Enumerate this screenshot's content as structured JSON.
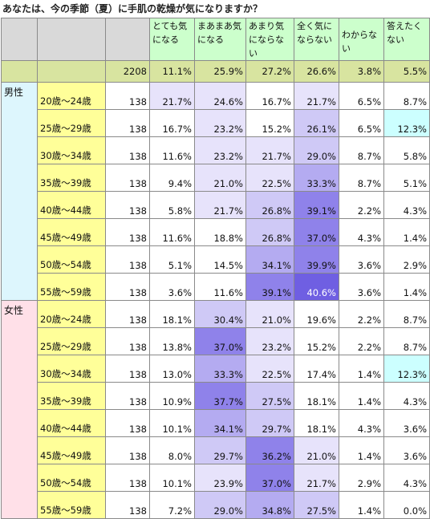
{
  "title": "あなたは、今の季節（夏）に手肌の乾燥が気になりますか？",
  "columns": [
    "とても気になる",
    "まあまあ気になる",
    "あまり気にならない",
    "全く気にならない",
    "わからない",
    "答えたくない"
  ],
  "total": {
    "count": "2208",
    "values": [
      "11.1%",
      "25.9%",
      "27.2%",
      "26.6%",
      "3.8%",
      "5.5%"
    ]
  },
  "groups": [
    {
      "label": "男性",
      "rows": [
        {
          "age": "20歳～24歳",
          "count": "138",
          "values": [
            "21.7%",
            "24.6%",
            "16.7%",
            "21.7%",
            "6.5%",
            "8.7%"
          ]
        },
        {
          "age": "25歳～29歳",
          "count": "138",
          "values": [
            "16.7%",
            "23.2%",
            "15.2%",
            "26.1%",
            "6.5%",
            "12.3%"
          ]
        },
        {
          "age": "30歳～34歳",
          "count": "138",
          "values": [
            "11.6%",
            "23.2%",
            "21.7%",
            "29.0%",
            "8.7%",
            "5.8%"
          ]
        },
        {
          "age": "35歳～39歳",
          "count": "138",
          "values": [
            "9.4%",
            "21.0%",
            "22.5%",
            "33.3%",
            "8.7%",
            "5.1%"
          ]
        },
        {
          "age": "40歳～44歳",
          "count": "138",
          "values": [
            "5.8%",
            "21.7%",
            "26.8%",
            "39.1%",
            "2.2%",
            "4.3%"
          ]
        },
        {
          "age": "45歳～49歳",
          "count": "138",
          "values": [
            "11.6%",
            "18.8%",
            "26.8%",
            "37.0%",
            "4.3%",
            "1.4%"
          ]
        },
        {
          "age": "50歳～54歳",
          "count": "138",
          "values": [
            "5.1%",
            "14.5%",
            "34.1%",
            "39.9%",
            "3.6%",
            "2.9%"
          ]
        },
        {
          "age": "55歳～59歳",
          "count": "138",
          "values": [
            "3.6%",
            "11.6%",
            "39.1%",
            "40.6%",
            "3.6%",
            "1.4%"
          ]
        }
      ]
    },
    {
      "label": "女性",
      "rows": [
        {
          "age": "20歳～24歳",
          "count": "138",
          "values": [
            "18.1%",
            "30.4%",
            "21.0%",
            "19.6%",
            "2.2%",
            "8.7%"
          ]
        },
        {
          "age": "25歳～29歳",
          "count": "138",
          "values": [
            "13.8%",
            "37.0%",
            "23.2%",
            "15.2%",
            "2.2%",
            "8.7%"
          ]
        },
        {
          "age": "30歳～34歳",
          "count": "138",
          "values": [
            "13.0%",
            "33.3%",
            "22.5%",
            "17.4%",
            "1.4%",
            "12.3%"
          ]
        },
        {
          "age": "35歳～39歳",
          "count": "138",
          "values": [
            "10.9%",
            "37.7%",
            "27.5%",
            "18.1%",
            "1.4%",
            "4.3%"
          ]
        },
        {
          "age": "40歳～44歳",
          "count": "138",
          "values": [
            "10.1%",
            "34.1%",
            "29.7%",
            "18.1%",
            "4.3%",
            "3.6%"
          ]
        },
        {
          "age": "45歳～49歳",
          "count": "138",
          "values": [
            "8.0%",
            "29.7%",
            "36.2%",
            "21.0%",
            "1.4%",
            "3.6%"
          ]
        },
        {
          "age": "50歳～54歳",
          "count": "138",
          "values": [
            "10.1%",
            "23.9%",
            "37.0%",
            "21.7%",
            "2.9%",
            "4.3%"
          ]
        },
        {
          "age": "55歳～59歳",
          "count": "138",
          "values": [
            "7.2%",
            "29.0%",
            "34.8%",
            "27.5%",
            "1.4%",
            "0.0%"
          ]
        }
      ]
    }
  ]
}
